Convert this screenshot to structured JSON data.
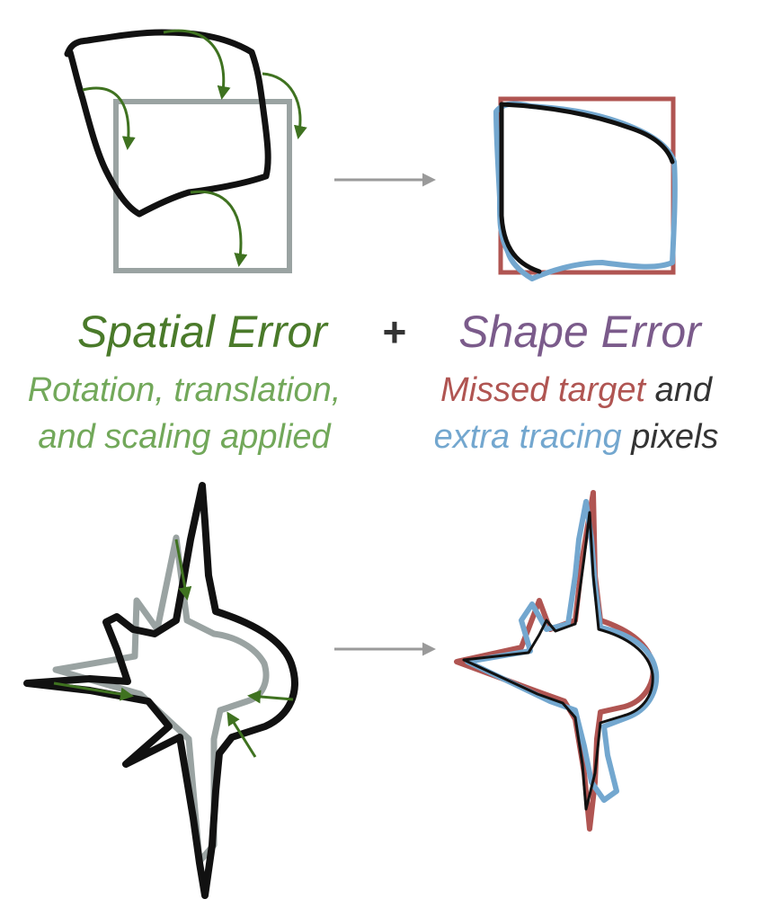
{
  "labels": {
    "spatial_title": "Spatial Error",
    "plus": "+",
    "shape_title": "Shape Error",
    "spatial_sub_line1": "Rotation, translation,",
    "spatial_sub_line2": "and scaling applied",
    "shape_sub_missed": "Missed target",
    "shape_sub_and": " and",
    "shape_sub_extra": "extra tracing",
    "shape_sub_pixels": " pixels"
  },
  "colors": {
    "trace": "#111111",
    "target_gray": "#9aa3a2",
    "arrow_green": "#3f7220",
    "spatial_title": "#4a7a2a",
    "spatial_sub": "#72a85a",
    "shape_title": "#7b5b8b",
    "missed_red": "#b05552",
    "extra_blue": "#73a7cf",
    "neutral_text": "#333333",
    "flow_arrow": "#9a9a9a"
  },
  "icons": {
    "flow_arrow": "right-arrow-icon",
    "transform_arrow": "curved-arrow-icon"
  }
}
